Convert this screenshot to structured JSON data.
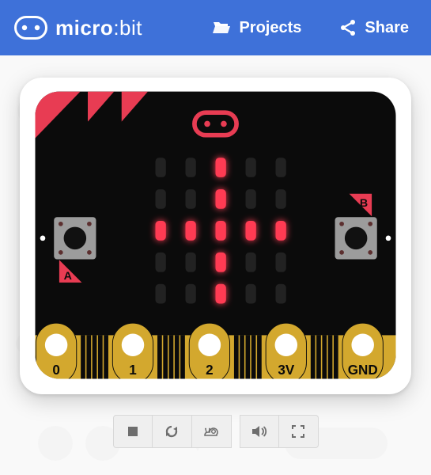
{
  "colors": {
    "topbar_bg": "#3e71d9",
    "brand_fg": "#ffffff",
    "board_bg": "#0b0b0b",
    "accent_red": "#e83c53",
    "metal": "#9c9c9c",
    "edge_gold": "#d3a82e",
    "led_on": "#ff3b52",
    "led_off": "#222222",
    "control_fg": "#6e6e6e"
  },
  "brand": {
    "name_left": "micro",
    "name_right": "bit"
  },
  "nav": {
    "projects": "Projects",
    "share": "Share"
  },
  "board": {
    "pins": [
      "0",
      "1",
      "2",
      "3V",
      "GND"
    ],
    "button_a": "A",
    "button_b": "B",
    "led_pattern": [
      [
        0,
        0,
        1,
        0,
        0
      ],
      [
        0,
        0,
        1,
        0,
        0
      ],
      [
        1,
        1,
        1,
        1,
        1
      ],
      [
        0,
        0,
        1,
        0,
        0
      ],
      [
        0,
        0,
        1,
        0,
        0
      ]
    ]
  },
  "controls": {
    "stop": "stop",
    "restart": "restart",
    "slow": "slow",
    "mute": "mute",
    "fullscreen": "fullscreen"
  }
}
